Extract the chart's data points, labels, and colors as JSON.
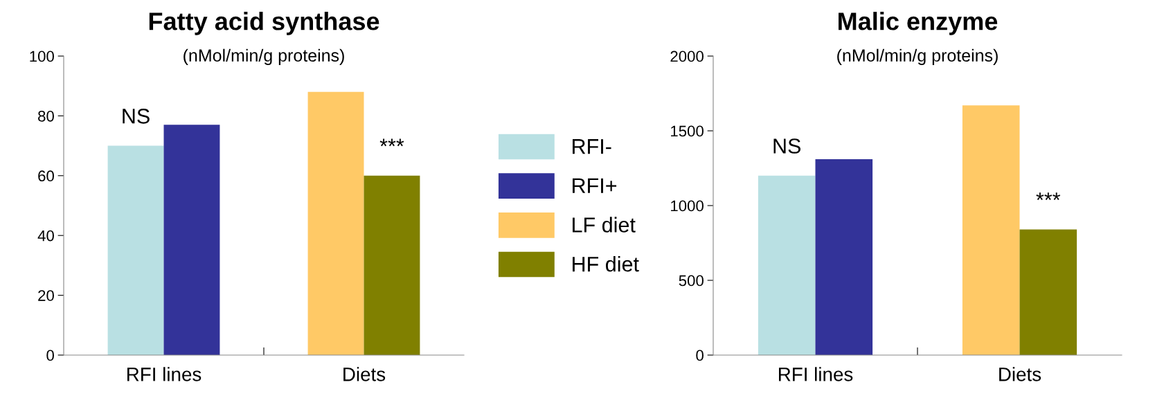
{
  "chart_data": [
    {
      "type": "bar",
      "title": "Fatty acid synthase",
      "subtitle": "(nMol/min/g proteins)",
      "categories": [
        "RFI lines",
        "Diets"
      ],
      "series": [
        {
          "name": "RFI-",
          "color": "#b9e0e3",
          "values": [
            70,
            null
          ]
        },
        {
          "name": "RFI+",
          "color": "#333399",
          "values": [
            77,
            null
          ]
        },
        {
          "name": "LF diet",
          "color": "#ffc966",
          "values": [
            null,
            88
          ]
        },
        {
          "name": "HF diet",
          "color": "#808000",
          "values": [
            null,
            60
          ]
        }
      ],
      "ylim": [
        0,
        100
      ],
      "yticks": [
        0,
        20,
        40,
        60,
        80,
        100
      ],
      "grid": false,
      "legend": "right",
      "annotations": [
        "NS",
        "***"
      ]
    },
    {
      "type": "bar",
      "title": "Malic enzyme",
      "subtitle": "(nMol/min/g proteins)",
      "categories": [
        "RFI lines",
        "Diets"
      ],
      "series": [
        {
          "color": "#b9e0e3",
          "values": [
            1200,
            null
          ]
        },
        {
          "color": "#333399",
          "values": [
            1310,
            null
          ]
        },
        {
          "color": "#ffc966",
          "values": [
            null,
            1670
          ]
        },
        {
          "color": "#808000",
          "values": [
            null,
            840
          ]
        }
      ],
      "ylim": [
        0,
        2000
      ],
      "yticks": [
        0,
        500,
        1000,
        1500,
        2000
      ],
      "grid": false,
      "annotations": [
        "NS",
        "***"
      ]
    }
  ]
}
